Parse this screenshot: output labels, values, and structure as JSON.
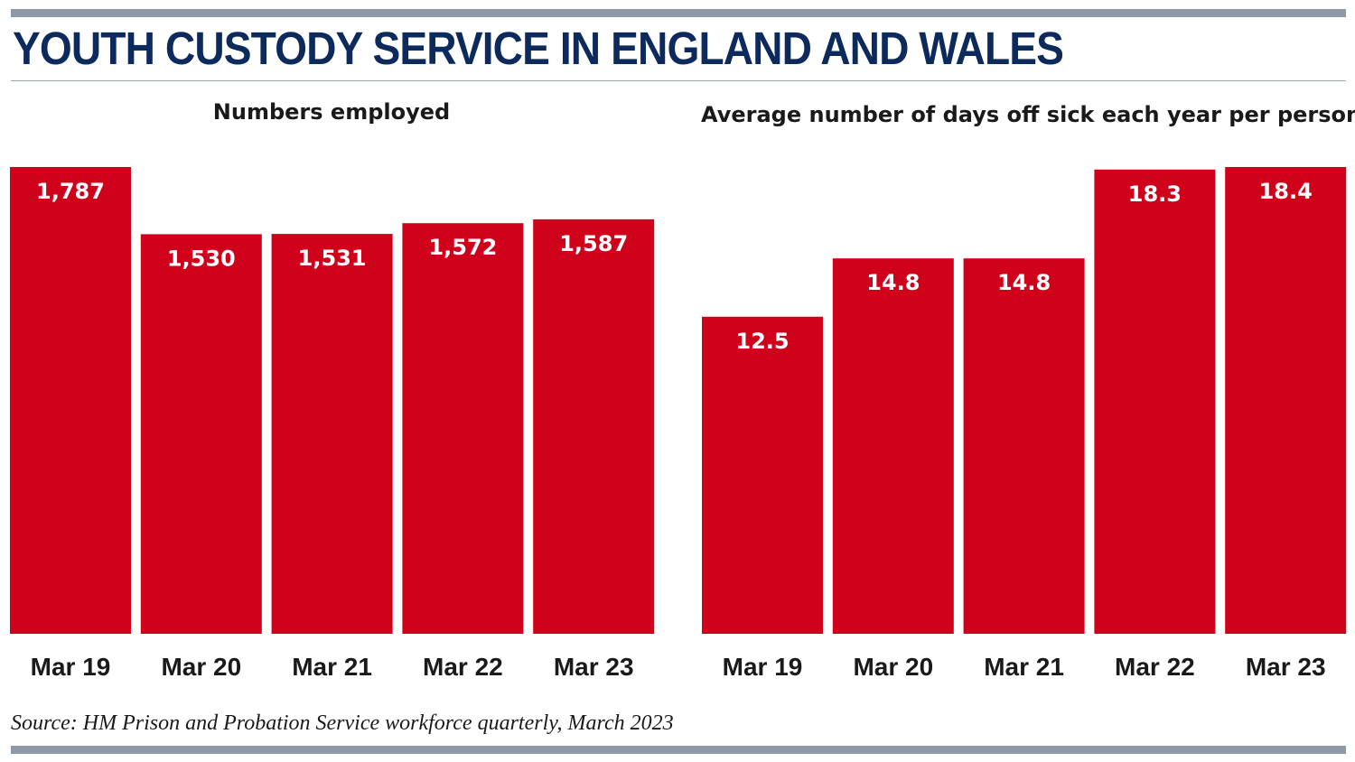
{
  "headline": "YOUTH CUSTODY SERVICE IN ENGLAND AND WALES",
  "source": "Source: HM Prison and Probation Service workforce quarterly, March 2023",
  "colors": {
    "bar": "#d0021b",
    "headline": "#0d2a5c",
    "rule": "#8d99a6",
    "label_text": "#ffffff"
  },
  "chart_data": [
    {
      "type": "bar",
      "title": "Numbers employed",
      "categories": [
        "Mar 19",
        "Mar 20",
        "Mar 21",
        "Mar 22",
        "Mar 23"
      ],
      "values": [
        1787,
        1530,
        1531,
        1572,
        1587
      ],
      "labels": [
        "1,787",
        "1,530",
        "1,531",
        "1,572",
        "1,587"
      ],
      "ylim": [
        0,
        1787
      ],
      "grid": false
    },
    {
      "type": "bar",
      "title": "Average number of days off sick each year per person",
      "categories": [
        "Mar 19",
        "Mar 20",
        "Mar 21",
        "Mar 22",
        "Mar 23"
      ],
      "values": [
        12.5,
        14.8,
        14.8,
        18.3,
        18.4
      ],
      "labels": [
        "12.5",
        "14.8",
        "14.8",
        "18.3",
        "18.4"
      ],
      "ylim": [
        0,
        18.4
      ],
      "grid": false
    }
  ]
}
